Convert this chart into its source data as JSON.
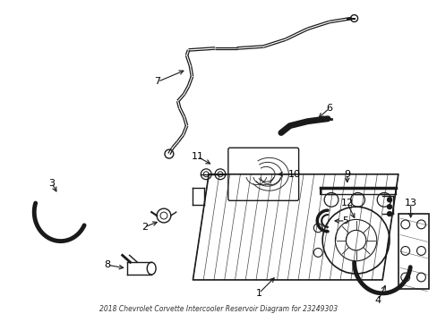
{
  "background_color": "#ffffff",
  "line_color": "#1a1a1a",
  "label_color": "#000000",
  "figsize": [
    4.89,
    3.6
  ],
  "dpi": 100
}
